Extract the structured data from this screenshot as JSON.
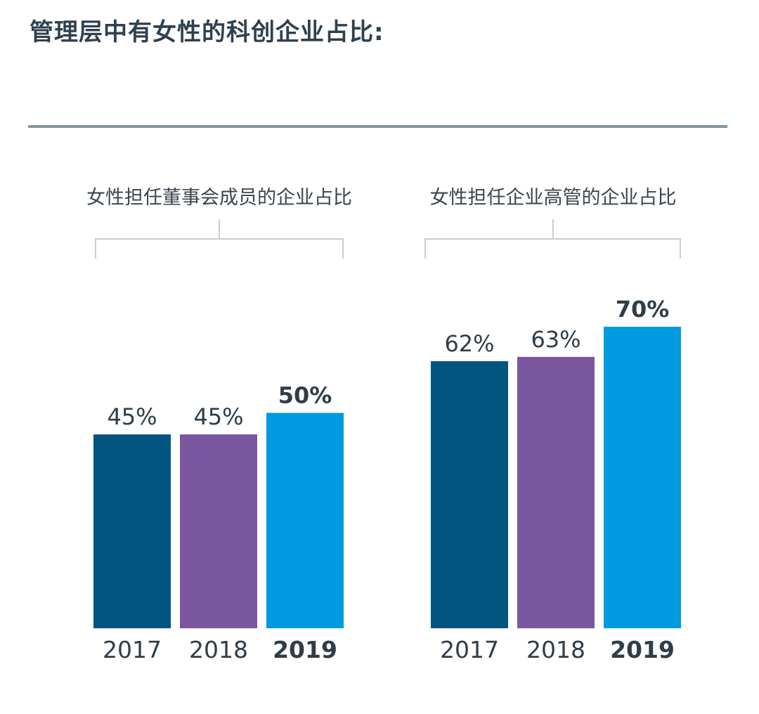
{
  "title": "管理层中有女性的科创企业占比:",
  "colors": {
    "2017": "#02557f",
    "2018": "#7a569f",
    "2019": "#009ae0",
    "rule": "#7f95a5",
    "bracket": "#c8ced4"
  },
  "chart_data": [
    {
      "type": "bar",
      "title": "女性担任董事会成员的企业占比",
      "categories": [
        "2017",
        "2018",
        "2019"
      ],
      "values": [
        45,
        45,
        50
      ],
      "value_labels": [
        "45%",
        "45%",
        "50%"
      ],
      "highlight": "2019",
      "ylim": [
        0,
        100
      ]
    },
    {
      "type": "bar",
      "title": "女性担任企业高管的企业占比",
      "categories": [
        "2017",
        "2018",
        "2019"
      ],
      "values": [
        62,
        63,
        70
      ],
      "value_labels": [
        "62%",
        "63%",
        "70%"
      ],
      "highlight": "2019",
      "ylim": [
        0,
        100
      ]
    }
  ]
}
